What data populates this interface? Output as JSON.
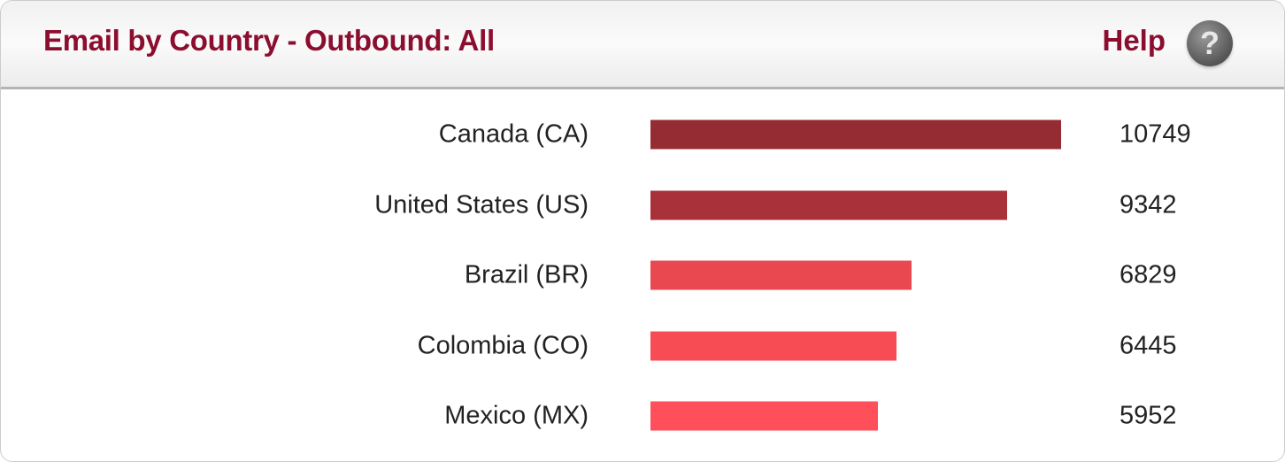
{
  "header": {
    "title": "Email by Country - Outbound: All",
    "help_label": "Help",
    "help_icon": "question-circle-icon"
  },
  "chart_data": {
    "type": "bar",
    "orientation": "horizontal",
    "categories": [
      "Canada (CA)",
      "United States (US)",
      "Brazil (BR)",
      "Colombia (CO)",
      "Mexico (MX)"
    ],
    "values": [
      10749,
      9342,
      6829,
      6445,
      5952
    ],
    "value_labels": [
      "10749",
      "9342",
      "6829",
      "6445",
      "5952"
    ],
    "colors": [
      "#952c33",
      "#a9323a",
      "#ea4850",
      "#f84c55",
      "#ff4f5a"
    ],
    "xlim": [
      0,
      10749
    ],
    "grid": false,
    "legend": "none"
  }
}
